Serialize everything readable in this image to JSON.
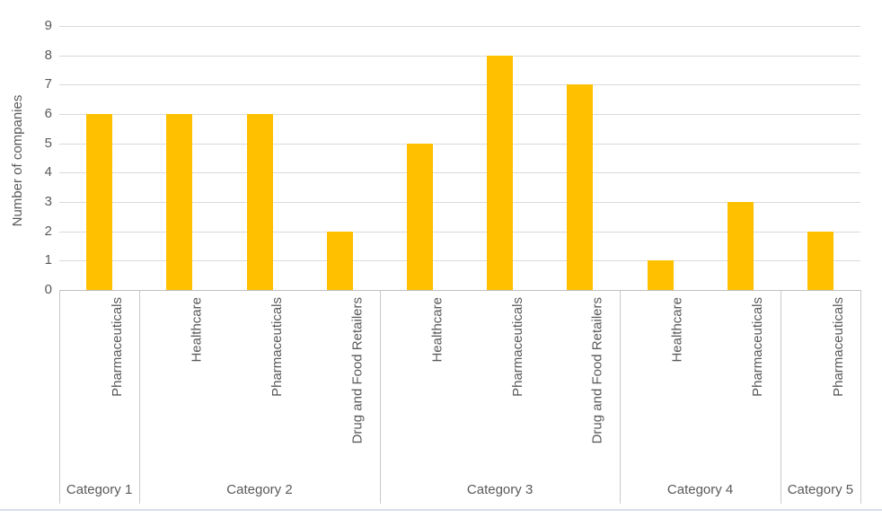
{
  "chart_data": {
    "type": "bar",
    "title": "",
    "xlabel": "",
    "ylabel": "Number of companies",
    "ylim": [
      0,
      9
    ],
    "yticks": [
      0,
      1,
      2,
      3,
      4,
      5,
      6,
      7,
      8,
      9
    ],
    "grid": true,
    "legend": false,
    "bar_color": "#FFC000",
    "groups": [
      {
        "label": "Category 1",
        "bars": [
          {
            "label": "Pharmaceuticals",
            "value": 6
          }
        ]
      },
      {
        "label": "Category 2",
        "bars": [
          {
            "label": "Healthcare",
            "value": 6
          },
          {
            "label": "Pharmaceuticals",
            "value": 6
          },
          {
            "label": "Drug and Food Retailers",
            "value": 2
          }
        ]
      },
      {
        "label": "Category 3",
        "bars": [
          {
            "label": "Healthcare",
            "value": 5
          },
          {
            "label": "Pharmaceuticals",
            "value": 8
          },
          {
            "label": "Drug and Food Retailers",
            "value": 7
          }
        ]
      },
      {
        "label": "Category 4",
        "bars": [
          {
            "label": "Healthcare",
            "value": 1
          },
          {
            "label": "Pharmaceuticals",
            "value": 3
          }
        ]
      },
      {
        "label": "Category 5",
        "bars": [
          {
            "label": "Pharmaceuticals",
            "value": 2
          }
        ]
      }
    ]
  },
  "colors": {
    "bar": "#FFC000",
    "gridline": "#D9D9D9",
    "axis_line": "#BFBFBF",
    "separator": "#C9C9C9",
    "text": "#595959",
    "bottom_border": "#D9DFE9"
  }
}
